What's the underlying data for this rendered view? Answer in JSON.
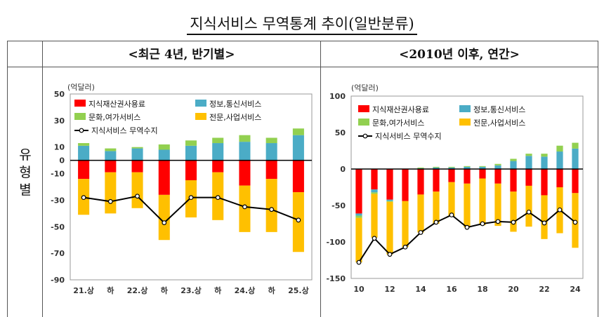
{
  "page": {
    "title": "지식서비스 무역통계 추이(일반분류)",
    "row_label_chars": [
      "유",
      "형",
      "별"
    ]
  },
  "colors": {
    "ip": "#ff0000",
    "info": "#4bacc6",
    "culture": "#92d050",
    "professional": "#ffc000",
    "balance": "#000000"
  },
  "chart_data": [
    {
      "type": "bar",
      "stacked": true,
      "header": "<최근 4년, 반기별>",
      "unit_label": "(억달러)",
      "categories": [
        "21.상",
        "하",
        "22.상",
        "하",
        "23.상",
        "하",
        "24.상",
        "하",
        "25.상"
      ],
      "ylim": [
        -90,
        50
      ],
      "yticks": [
        50,
        30,
        10,
        -10,
        -30,
        -50,
        -70,
        -90
      ],
      "ytick_labels": [
        "50",
        "30",
        "10",
        "-10",
        "-30",
        "-50",
        "-70",
        "-90"
      ],
      "zero_label": "0",
      "series": [
        {
          "name": "지식재산권사용료",
          "key": "ip",
          "values": [
            -14,
            -9,
            -9,
            -26,
            -15,
            -9,
            -19,
            -14,
            -24
          ]
        },
        {
          "name": "정보,통신서비스",
          "key": "info",
          "values": [
            11,
            7,
            9,
            8,
            11,
            13,
            14,
            13,
            19
          ]
        },
        {
          "name": "문화,여가서비스",
          "key": "culture",
          "values": [
            2,
            2,
            1,
            4,
            4,
            4,
            5,
            4,
            5
          ]
        },
        {
          "name": "전문,사업서비스",
          "key": "professional",
          "values": [
            -27,
            -31,
            -27,
            -34,
            -28,
            -36,
            -35,
            -40,
            -45
          ]
        },
        {
          "name": "지식서비스 무역수지",
          "key": "balance",
          "kind": "line",
          "values": [
            -28,
            -31,
            -27,
            -47,
            -28,
            -28,
            -35,
            -37,
            -45
          ]
        }
      ]
    },
    {
      "type": "bar",
      "stacked": true,
      "header": "<2010년 이후, 연간>",
      "unit_label": "(억달러)",
      "categories": [
        "10",
        "11",
        "12",
        "13",
        "14",
        "15",
        "16",
        "17",
        "18",
        "19",
        "20",
        "21",
        "22",
        "23",
        "24"
      ],
      "xtick_labels": [
        "10",
        "",
        "12",
        "",
        "14",
        "",
        "16",
        "",
        "18",
        "",
        "20",
        "",
        "22",
        "",
        "24"
      ],
      "ylim": [
        -150,
        100
      ],
      "yticks": [
        100,
        50,
        0,
        -50,
        -100,
        -150
      ],
      "ytick_labels": [
        "100",
        "50",
        "0",
        "-50",
        "-100",
        "-150"
      ],
      "series": [
        {
          "name": "지식재산권사용료",
          "key": "ip",
          "values": [
            -61,
            -28,
            -42,
            -44,
            -35,
            -31,
            -18,
            -20,
            -13,
            -20,
            -31,
            -23,
            -36,
            -25,
            -33
          ]
        },
        {
          "name": "정보,통신서비스",
          "key": "info",
          "values": [
            -3,
            -4,
            -2,
            0,
            1,
            2,
            2,
            3,
            3,
            5,
            11,
            18,
            17,
            24,
            28
          ]
        },
        {
          "name": "문화,여가서비스",
          "key": "culture",
          "values": [
            -3,
            -2,
            -1,
            0,
            1,
            1,
            1,
            1,
            1,
            2,
            3,
            3,
            4,
            8,
            8
          ]
        },
        {
          "name": "전문,사업서비스",
          "key": "professional",
          "values": [
            -61,
            -60,
            -72,
            -63,
            -52,
            -44,
            -47,
            -60,
            -64,
            -58,
            -55,
            -56,
            -60,
            -63,
            -75
          ]
        },
        {
          "name": "지식서비스 무역수지",
          "key": "balance",
          "kind": "line",
          "values": [
            -128,
            -95,
            -117,
            -107,
            -87,
            -73,
            -63,
            -80,
            -75,
            -72,
            -73,
            -59,
            -74,
            -56,
            -73
          ]
        }
      ]
    }
  ]
}
